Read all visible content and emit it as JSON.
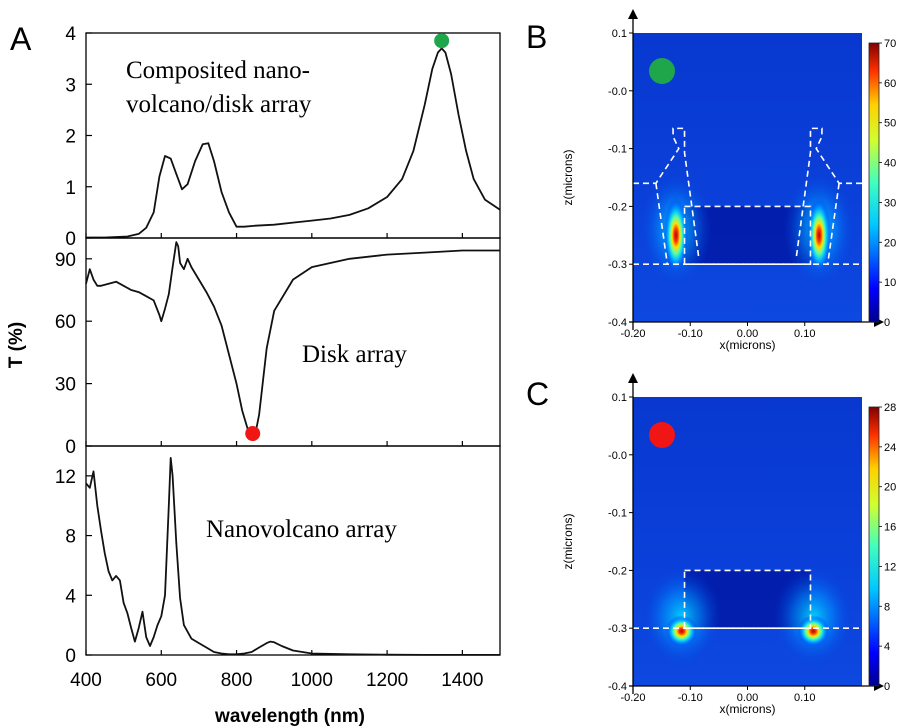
{
  "panels": {
    "a": "A",
    "b": "B",
    "c": "C"
  },
  "colors": {
    "green_marker": "#1fa64a",
    "red_marker": "#f01616",
    "curve": "#111111",
    "field_low": "#00008f",
    "field_bg": "#0a3fd8"
  },
  "chart_data": [
    {
      "type": "line",
      "panel": "A",
      "xlabel": "wavelength (nm)",
      "ylabel": "T (%)",
      "xlim": [
        400,
        1500
      ],
      "xticks": [
        400,
        600,
        800,
        1000,
        1200,
        1400
      ],
      "grid": false,
      "subplots": [
        {
          "annotation": "Composited nano-volcano/disk array",
          "annotation_lines": [
            "Composited nano-",
            "volcano/disk array"
          ],
          "ylim": [
            0,
            4
          ],
          "yticks": [
            0,
            1,
            2,
            3,
            4
          ],
          "x": [
            400,
            420,
            450,
            480,
            510,
            540,
            560,
            580,
            595,
            610,
            625,
            640,
            655,
            670,
            690,
            710,
            725,
            740,
            760,
            780,
            800,
            820,
            850,
            900,
            950,
            1000,
            1050,
            1100,
            1150,
            1200,
            1240,
            1270,
            1300,
            1320,
            1335,
            1345,
            1355,
            1370,
            1390,
            1410,
            1430,
            1460,
            1500
          ],
          "y": [
            0.01,
            0.01,
            0.01,
            0.02,
            0.03,
            0.08,
            0.2,
            0.5,
            1.2,
            1.6,
            1.55,
            1.25,
            0.95,
            1.05,
            1.5,
            1.83,
            1.85,
            1.5,
            0.9,
            0.5,
            0.22,
            0.22,
            0.24,
            0.26,
            0.3,
            0.34,
            0.38,
            0.45,
            0.58,
            0.8,
            1.15,
            1.7,
            2.6,
            3.3,
            3.62,
            3.7,
            3.62,
            3.2,
            2.4,
            1.7,
            1.15,
            0.75,
            0.55
          ],
          "marker": {
            "x": 1345,
            "y": 3.85,
            "color": "green"
          }
        },
        {
          "annotation": "Disk array",
          "annotation_lines": [
            "Disk array"
          ],
          "ylim": [
            0,
            100
          ],
          "yticks": [
            0,
            30,
            60,
            90
          ],
          "x": [
            400,
            410,
            420,
            430,
            440,
            460,
            480,
            500,
            520,
            540,
            560,
            580,
            595,
            600,
            610,
            620,
            630,
            640,
            645,
            650,
            660,
            670,
            680,
            700,
            720,
            740,
            760,
            780,
            800,
            815,
            830,
            840,
            845,
            850,
            860,
            880,
            900,
            950,
            1000,
            1100,
            1200,
            1300,
            1400,
            1500
          ],
          "y": [
            78,
            85,
            80,
            77,
            77,
            78,
            79,
            77,
            75,
            74,
            72,
            70,
            63,
            60,
            66,
            73,
            86,
            98,
            96,
            88,
            85,
            90,
            86,
            80,
            74,
            67,
            58,
            44,
            30,
            17,
            8,
            5,
            5,
            6,
            15,
            47,
            65,
            80,
            86,
            90,
            92,
            93,
            94,
            94
          ],
          "marker": {
            "x": 843,
            "y": 6,
            "color": "red"
          }
        },
        {
          "annotation": "Nanovolcano array",
          "annotation_lines": [
            "Nanovolcano array"
          ],
          "ylim": [
            0,
            14
          ],
          "yticks": [
            0,
            4,
            8,
            12
          ],
          "x": [
            400,
            410,
            420,
            430,
            440,
            450,
            460,
            470,
            480,
            490,
            500,
            510,
            520,
            530,
            540,
            550,
            560,
            570,
            580,
            590,
            600,
            610,
            620,
            625,
            630,
            640,
            650,
            660,
            680,
            700,
            720,
            740,
            760,
            780,
            800,
            820,
            840,
            860,
            880,
            890,
            900,
            920,
            950,
            1000,
            1100,
            1200,
            1300,
            1400,
            1500
          ],
          "y": [
            11.5,
            11.2,
            12.3,
            10.0,
            8.3,
            6.8,
            5.6,
            5.0,
            5.3,
            5.0,
            3.5,
            2.8,
            1.8,
            0.9,
            1.8,
            2.9,
            1.2,
            0.6,
            1.2,
            2.0,
            2.6,
            4.0,
            10.0,
            13.2,
            12.0,
            7.5,
            3.8,
            2.0,
            1.1,
            0.8,
            0.5,
            0.2,
            0.1,
            0.05,
            0.05,
            0.1,
            0.2,
            0.5,
            0.8,
            0.9,
            0.85,
            0.6,
            0.3,
            0.1,
            0.05,
            0.02,
            0.01,
            0.01,
            0.01
          ]
        }
      ]
    },
    {
      "type": "heatmap",
      "panel": "B",
      "xlabel": "x(microns)",
      "ylabel": "z(microns)",
      "xlim": [
        -0.2,
        0.2
      ],
      "ylim": [
        -0.4,
        0.1
      ],
      "xtick_labels": [
        "-0.20",
        "-0.10",
        "0.00",
        "0.10"
      ],
      "xtick_values": [
        -0.2,
        -0.1,
        0.0,
        0.1
      ],
      "ytick_labels": [
        "0.1",
        "-0.0",
        "-0.1",
        "-0.2",
        "-0.3",
        "-0.4"
      ],
      "ytick_values": [
        0.1,
        0.0,
        -0.1,
        -0.2,
        -0.3,
        -0.4
      ],
      "colorbar": {
        "min": 0,
        "max": 70,
        "ticks": [
          0,
          10,
          20,
          30,
          40,
          50,
          60,
          70
        ]
      },
      "marker_color": "green",
      "hotspots": [
        {
          "x": -0.125,
          "z": -0.25,
          "level": 1.0
        },
        {
          "x": 0.125,
          "z": -0.25,
          "level": 1.0
        }
      ]
    },
    {
      "type": "heatmap",
      "panel": "C",
      "xlabel": "x(microns)",
      "ylabel": "z(microns)",
      "xlim": [
        -0.2,
        0.2
      ],
      "ylim": [
        -0.4,
        0.1
      ],
      "xtick_labels": [
        "-0.20",
        "-0.10",
        "0.00",
        "0.10"
      ],
      "xtick_values": [
        -0.2,
        -0.1,
        0.0,
        0.1
      ],
      "ytick_labels": [
        "0.1",
        "-0.0",
        "-0.1",
        "-0.2",
        "-0.3",
        "-0.4"
      ],
      "ytick_values": [
        0.1,
        0.0,
        -0.1,
        -0.2,
        -0.3,
        -0.4
      ],
      "colorbar": {
        "min": 0,
        "max": 28,
        "ticks": [
          0,
          4,
          8,
          12,
          16,
          20,
          24,
          28
        ]
      },
      "marker_color": "red",
      "hotspots": [
        {
          "x": -0.115,
          "z": -0.305,
          "level": 1.0
        },
        {
          "x": 0.115,
          "z": -0.305,
          "level": 1.0
        }
      ]
    }
  ]
}
